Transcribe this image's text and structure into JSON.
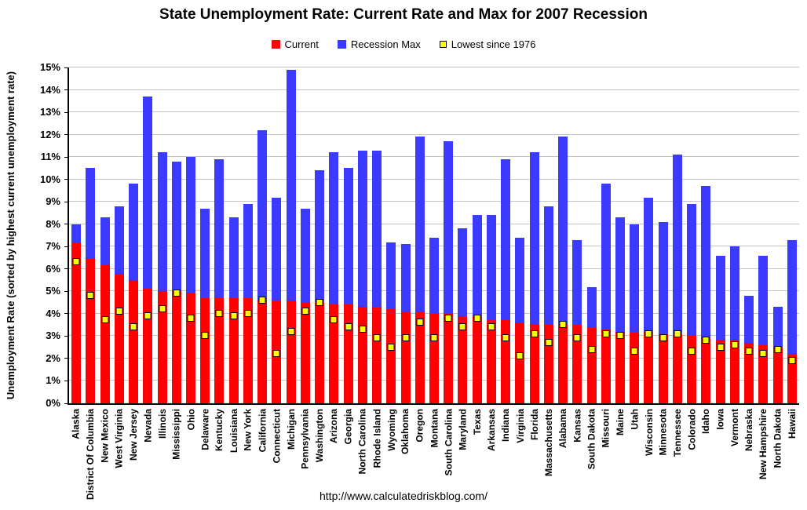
{
  "chart_data": {
    "type": "bar",
    "title": "State Unemployment Rate: Current Rate and Max for 2007 Recession",
    "ylabel": "Unemployment Rate (sorted by highest current unemployment rate)",
    "xlabel": "",
    "footer_url": "http://www.calculatedriskblog.com/",
    "ylim": [
      0,
      15
    ],
    "yticks": [
      "0%",
      "1%",
      "2%",
      "3%",
      "4%",
      "5%",
      "6%",
      "7%",
      "8%",
      "9%",
      "10%",
      "11%",
      "12%",
      "13%",
      "14%",
      "15%"
    ],
    "grid": true,
    "legend_position": "top",
    "categories": [
      "Alaska",
      "District Of Columbia",
      "New Mexico",
      "West Virginia",
      "New Jersey",
      "Nevada",
      "Illinois",
      "Mississippi",
      "Ohio",
      "Delaware",
      "Kentucky",
      "Louisiana",
      "New York",
      "California",
      "Connecticut",
      "Michigan",
      "Pennsylvania",
      "Washington",
      "Arizona",
      "Georgia",
      "North Carolina",
      "Rhode Island",
      "Wyoming",
      "Oklahoma",
      "Oregon",
      "Montana",
      "South Carolina",
      "Maryland",
      "Texas",
      "Arkansas",
      "Indiana",
      "Virginia",
      "Florida",
      "Massachusetts",
      "Alabama",
      "Kansas",
      "South Dakota",
      "Missouri",
      "Maine",
      "Utah",
      "Wisconsin",
      "Minnesota",
      "Tennessee",
      "Colorado",
      "Idaho",
      "Iowa",
      "Vermont",
      "Nebraska",
      "New Hampshire",
      "North Dakota",
      "Hawaii"
    ],
    "series": [
      {
        "name": "Current",
        "color": "#ff0000",
        "values": [
          7.2,
          6.5,
          6.2,
          5.8,
          5.5,
          5.1,
          5.0,
          5.0,
          4.9,
          4.7,
          4.7,
          4.7,
          4.7,
          4.6,
          4.6,
          4.6,
          4.5,
          4.5,
          4.4,
          4.4,
          4.3,
          4.3,
          4.2,
          4.1,
          4.1,
          4.0,
          4.0,
          3.9,
          3.9,
          3.7,
          3.7,
          3.6,
          3.5,
          3.5,
          3.5,
          3.5,
          3.4,
          3.3,
          3.2,
          3.2,
          3.2,
          3.1,
          3.1,
          3.0,
          2.9,
          2.8,
          2.8,
          2.7,
          2.6,
          2.5,
          2.2
        ]
      },
      {
        "name": "Recession Max",
        "color": "#3b3bff",
        "values": [
          8.0,
          10.5,
          8.3,
          8.8,
          9.8,
          13.7,
          11.2,
          10.8,
          11.0,
          8.7,
          10.9,
          8.3,
          8.9,
          12.2,
          9.2,
          14.9,
          8.7,
          10.4,
          11.2,
          10.5,
          11.3,
          11.3,
          7.2,
          7.1,
          11.9,
          7.4,
          11.7,
          7.8,
          8.4,
          8.4,
          10.9,
          7.4,
          11.2,
          8.8,
          11.9,
          7.3,
          5.2,
          9.8,
          8.3,
          8.0,
          9.2,
          8.1,
          11.1,
          8.9,
          9.7,
          6.6,
          7.0,
          4.8,
          6.6,
          4.3,
          7.3
        ]
      },
      {
        "name": "Lowest since 1976",
        "color": "#ffff00",
        "marker": true,
        "values": [
          6.3,
          4.8,
          3.7,
          4.1,
          3.4,
          3.9,
          4.2,
          4.9,
          3.8,
          3.0,
          4.0,
          3.9,
          4.0,
          4.6,
          2.2,
          3.2,
          4.1,
          4.5,
          3.7,
          3.4,
          3.3,
          2.9,
          2.5,
          2.9,
          3.6,
          2.9,
          3.8,
          3.4,
          3.8,
          3.4,
          2.9,
          2.1,
          3.1,
          2.7,
          3.5,
          2.9,
          2.4,
          3.1,
          3.0,
          2.3,
          3.1,
          2.9,
          3.1,
          2.3,
          2.8,
          2.5,
          2.6,
          2.3,
          2.2,
          2.4,
          1.9
        ]
      }
    ]
  }
}
